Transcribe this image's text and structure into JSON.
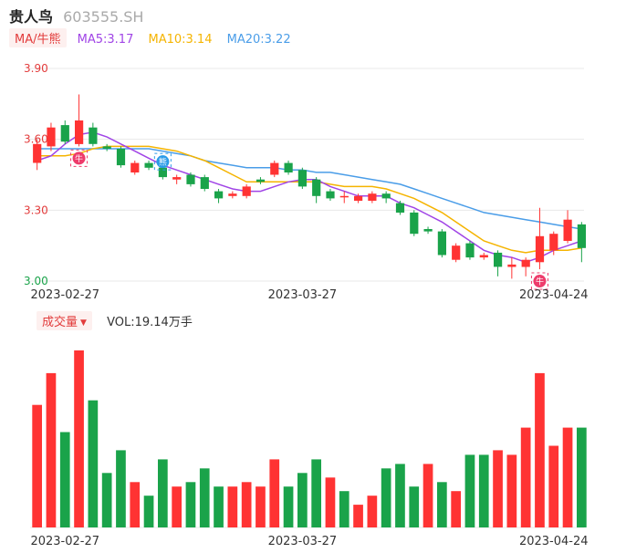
{
  "header": {
    "name": "贵人鸟",
    "code": "603555.SH"
  },
  "ma": {
    "tag": "MA/牛熊",
    "ma5": "MA5:3.17",
    "ma10": "MA10:3.14",
    "ma20": "MA20:3.22"
  },
  "volume_panel": {
    "tag": "成交量",
    "text": "VOL:19.14万手"
  },
  "colors": {
    "up": "#ff3333",
    "down": "#1aa34a",
    "ma5": "#a044e6",
    "ma10": "#f5b400",
    "ma20": "#4a9de8",
    "grid": "#e8e8e8"
  },
  "icons": {
    "bull": "牛",
    "bear": "熊"
  },
  "chart_data": [
    {
      "type": "candlestick",
      "ylim": [
        3.0,
        3.9
      ],
      "yticks": [
        "3.90",
        "3.60",
        "3.30",
        "3.00"
      ],
      "xticks": [
        "2023-02-27",
        "2023-03-27",
        "2023-04-24"
      ],
      "candles": [
        {
          "o": 3.5,
          "c": 3.58,
          "h": 3.6,
          "l": 3.47
        },
        {
          "o": 3.57,
          "c": 3.65,
          "h": 3.67,
          "l": 3.55
        },
        {
          "o": 3.66,
          "c": 3.59,
          "h": 3.68,
          "l": 3.58
        },
        {
          "o": 3.58,
          "c": 3.68,
          "h": 3.79,
          "l": 3.57
        },
        {
          "o": 3.65,
          "c": 3.58,
          "h": 3.67,
          "l": 3.57
        },
        {
          "o": 3.57,
          "c": 3.56,
          "h": 3.58,
          "l": 3.55
        },
        {
          "o": 3.56,
          "c": 3.49,
          "h": 3.57,
          "l": 3.48
        },
        {
          "o": 3.46,
          "c": 3.5,
          "h": 3.51,
          "l": 3.45
        },
        {
          "o": 3.5,
          "c": 3.48,
          "h": 3.51,
          "l": 3.47
        },
        {
          "o": 3.48,
          "c": 3.44,
          "h": 3.49,
          "l": 3.43
        },
        {
          "o": 3.43,
          "c": 3.44,
          "h": 3.45,
          "l": 3.41
        },
        {
          "o": 3.45,
          "c": 3.41,
          "h": 3.46,
          "l": 3.4
        },
        {
          "o": 3.44,
          "c": 3.39,
          "h": 3.45,
          "l": 3.38
        },
        {
          "o": 3.38,
          "c": 3.35,
          "h": 3.39,
          "l": 3.33
        },
        {
          "o": 3.36,
          "c": 3.37,
          "h": 3.38,
          "l": 3.35
        },
        {
          "o": 3.36,
          "c": 3.4,
          "h": 3.41,
          "l": 3.35
        },
        {
          "o": 3.43,
          "c": 3.42,
          "h": 3.44,
          "l": 3.41
        },
        {
          "o": 3.45,
          "c": 3.5,
          "h": 3.51,
          "l": 3.44
        },
        {
          "o": 3.5,
          "c": 3.46,
          "h": 3.51,
          "l": 3.45
        },
        {
          "o": 3.47,
          "c": 3.4,
          "h": 3.48,
          "l": 3.39
        },
        {
          "o": 3.43,
          "c": 3.36,
          "h": 3.44,
          "l": 3.33
        },
        {
          "o": 3.38,
          "c": 3.35,
          "h": 3.39,
          "l": 3.34
        },
        {
          "o": 3.36,
          "c": 3.36,
          "h": 3.38,
          "l": 3.33
        },
        {
          "o": 3.34,
          "c": 3.36,
          "h": 3.37,
          "l": 3.33
        },
        {
          "o": 3.34,
          "c": 3.37,
          "h": 3.38,
          "l": 3.33
        },
        {
          "o": 3.37,
          "c": 3.35,
          "h": 3.38,
          "l": 3.33
        },
        {
          "o": 3.33,
          "c": 3.29,
          "h": 3.34,
          "l": 3.28
        },
        {
          "o": 3.29,
          "c": 3.2,
          "h": 3.3,
          "l": 3.19
        },
        {
          "o": 3.22,
          "c": 3.21,
          "h": 3.23,
          "l": 3.2
        },
        {
          "o": 3.21,
          "c": 3.11,
          "h": 3.22,
          "l": 3.1
        },
        {
          "o": 3.09,
          "c": 3.15,
          "h": 3.16,
          "l": 3.08
        },
        {
          "o": 3.16,
          "c": 3.1,
          "h": 3.17,
          "l": 3.09
        },
        {
          "o": 3.1,
          "c": 3.11,
          "h": 3.12,
          "l": 3.09
        },
        {
          "o": 3.12,
          "c": 3.06,
          "h": 3.13,
          "l": 3.02
        },
        {
          "o": 3.06,
          "c": 3.07,
          "h": 3.1,
          "l": 3.01
        },
        {
          "o": 3.06,
          "c": 3.09,
          "h": 3.1,
          "l": 3.02
        },
        {
          "o": 3.08,
          "c": 3.19,
          "h": 3.31,
          "l": 3.05
        },
        {
          "o": 3.13,
          "c": 3.2,
          "h": 3.21,
          "l": 3.11
        },
        {
          "o": 3.17,
          "c": 3.26,
          "h": 3.3,
          "l": 3.16
        },
        {
          "o": 3.24,
          "c": 3.14,
          "h": 3.25,
          "l": 3.08
        }
      ],
      "ma5": [
        3.51,
        3.53,
        3.58,
        3.62,
        3.63,
        3.61,
        3.58,
        3.55,
        3.52,
        3.49,
        3.47,
        3.45,
        3.43,
        3.41,
        3.39,
        3.38,
        3.38,
        3.4,
        3.42,
        3.43,
        3.43,
        3.4,
        3.38,
        3.36,
        3.36,
        3.36,
        3.33,
        3.31,
        3.28,
        3.25,
        3.21,
        3.17,
        3.13,
        3.11,
        3.1,
        3.08,
        3.1,
        3.13,
        3.15,
        3.17
      ],
      "ma10": [
        3.53,
        3.53,
        3.53,
        3.54,
        3.56,
        3.57,
        3.57,
        3.57,
        3.57,
        3.56,
        3.55,
        3.53,
        3.51,
        3.48,
        3.45,
        3.42,
        3.42,
        3.42,
        3.42,
        3.42,
        3.42,
        3.41,
        3.4,
        3.4,
        3.4,
        3.39,
        3.37,
        3.35,
        3.32,
        3.29,
        3.25,
        3.21,
        3.17,
        3.15,
        3.13,
        3.12,
        3.13,
        3.13,
        3.13,
        3.14
      ],
      "ma20": [
        3.56,
        3.56,
        3.56,
        3.56,
        3.56,
        3.56,
        3.56,
        3.56,
        3.56,
        3.55,
        3.54,
        3.53,
        3.51,
        3.5,
        3.49,
        3.48,
        3.48,
        3.48,
        3.47,
        3.47,
        3.46,
        3.46,
        3.45,
        3.44,
        3.43,
        3.42,
        3.41,
        3.39,
        3.37,
        3.35,
        3.33,
        3.31,
        3.29,
        3.28,
        3.27,
        3.26,
        3.25,
        3.24,
        3.23,
        3.22
      ],
      "markers": [
        {
          "index": 3,
          "kind": "bull",
          "position": "below"
        },
        {
          "index": 9,
          "kind": "bear",
          "position": "above"
        },
        {
          "index": 36,
          "kind": "bull",
          "position": "below"
        }
      ]
    },
    {
      "type": "bar",
      "title": "成交量",
      "xticks": [
        "2023-02-27",
        "2023-03-27",
        "2023-04-24"
      ],
      "values": [
        27,
        34,
        21,
        39,
        28,
        12,
        17,
        10,
        7,
        15,
        9,
        10,
        13,
        9,
        9,
        10,
        9,
        15,
        9,
        12,
        15,
        11,
        8,
        5,
        7,
        13,
        14,
        9,
        14,
        10,
        8,
        16,
        16,
        17,
        16,
        22,
        34,
        18,
        22,
        22
      ],
      "up": [
        1,
        1,
        0,
        1,
        0,
        0,
        0,
        1,
        0,
        0,
        1,
        0,
        0,
        0,
        1,
        1,
        1,
        1,
        0,
        0,
        0,
        1,
        0,
        1,
        1,
        0,
        0,
        0,
        1,
        0,
        1,
        0,
        0,
        1,
        1,
        1,
        1,
        1,
        1,
        0
      ]
    }
  ]
}
